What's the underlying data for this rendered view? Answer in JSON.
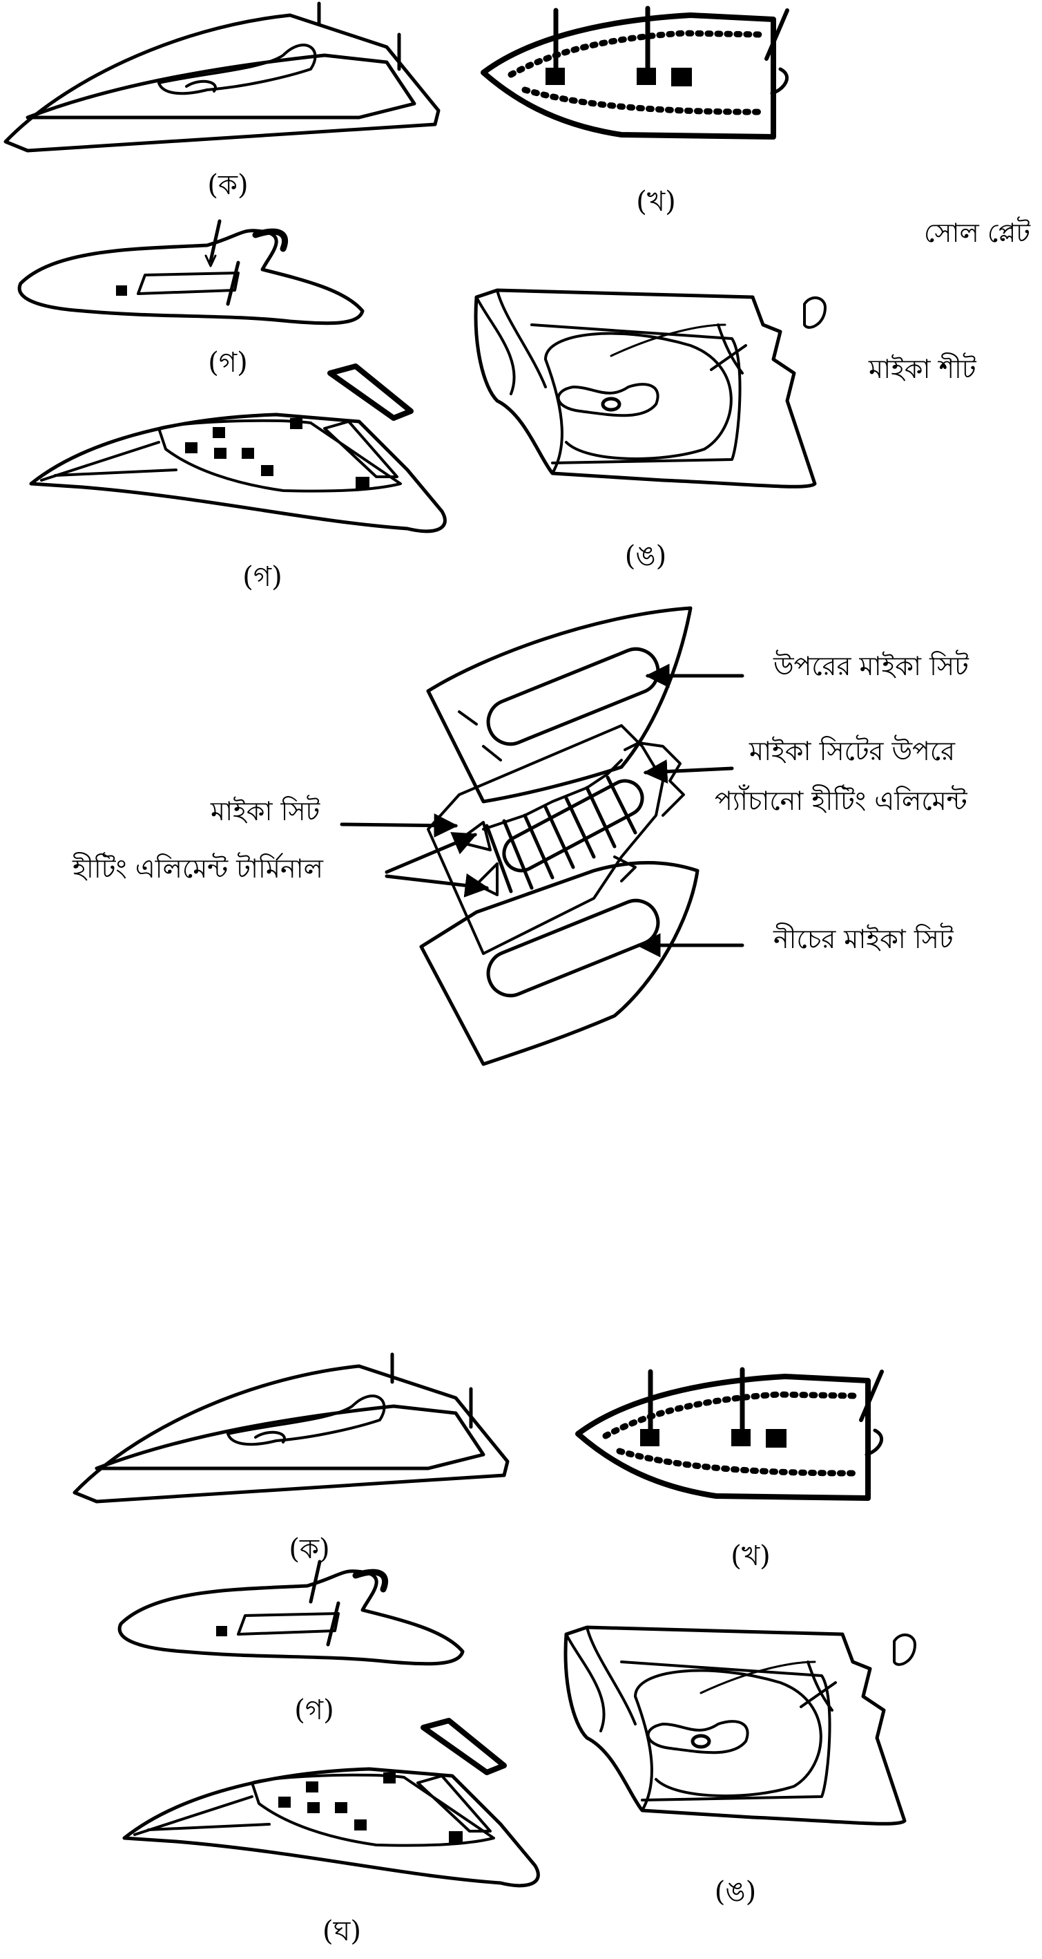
{
  "figure_top": {
    "captions": {
      "a": "(ক)",
      "b": "(খ)",
      "c": "(গ)",
      "c2": "(গ)",
      "e": "(ঙ)"
    },
    "labels": {
      "sole_plate": "সোল প্লেট",
      "mica_sheet": "মাইকা শীট"
    }
  },
  "figure_middle": {
    "labels": {
      "upper_mica": "উপরের মাইকা সিট",
      "wound_line1": "মাইকা সিটের উপরে",
      "wound_line2": "প্যাঁচানো হীটিং এলিমেন্ট",
      "mica_sheet": "মাইকা সিট",
      "terminal": "হীটিং এলিমেন্ট টার্মিনাল",
      "lower_mica": "নীচের মাইকা সিট"
    }
  },
  "figure_bottom": {
    "captions": {
      "a": "(ক)",
      "b": "(খ)",
      "c": "(গ)",
      "d": "(ঘ)",
      "e": "(ঙ)"
    }
  }
}
